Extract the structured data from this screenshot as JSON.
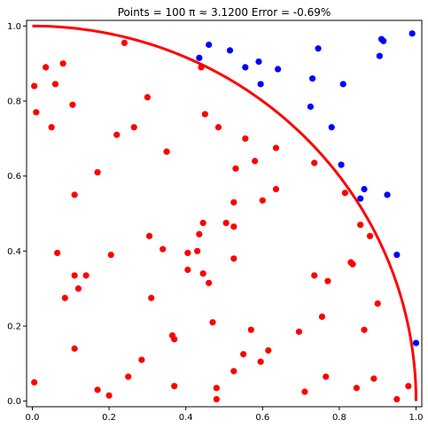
{
  "chart_data": {
    "type": "scatter",
    "title": "Points = 100   π ≈  3.1200   Error = -0.69%",
    "xlabel": "",
    "ylabel": "",
    "xlim": [
      -0.015,
      1.015
    ],
    "ylim": [
      -0.015,
      1.015
    ],
    "grid": false,
    "x_ticks": [
      "0.0",
      "0.2",
      "0.4",
      "0.6",
      "0.8",
      "1.0"
    ],
    "y_ticks": [
      "0.0",
      "0.2",
      "0.4",
      "0.6",
      "0.8",
      "1.0"
    ],
    "colors": {
      "inside": "#ff0000",
      "outside": "#0000ff",
      "arc": "#ff0000"
    },
    "arc": {
      "type": "quarter-circle",
      "radius": 1.0
    },
    "series": [
      {
        "group": "inside",
        "points": [
          [
            0.005,
            0.84
          ],
          [
            0.01,
            0.77
          ],
          [
            0.035,
            0.89
          ],
          [
            0.05,
            0.73
          ],
          [
            0.06,
            0.845
          ],
          [
            0.08,
            0.9
          ],
          [
            0.105,
            0.79
          ],
          [
            0.24,
            0.955
          ],
          [
            0.44,
            0.89
          ],
          [
            0.3,
            0.81
          ],
          [
            0.45,
            0.765
          ],
          [
            0.485,
            0.73
          ],
          [
            0.265,
            0.73
          ],
          [
            0.22,
            0.71
          ],
          [
            0.35,
            0.665
          ],
          [
            0.555,
            0.7
          ],
          [
            0.58,
            0.64
          ],
          [
            0.53,
            0.62
          ],
          [
            0.635,
            0.675
          ],
          [
            0.735,
            0.635
          ],
          [
            0.635,
            0.565
          ],
          [
            0.815,
            0.555
          ],
          [
            0.6,
            0.535
          ],
          [
            0.525,
            0.53
          ],
          [
            0.17,
            0.61
          ],
          [
            0.11,
            0.55
          ],
          [
            0.445,
            0.475
          ],
          [
            0.505,
            0.475
          ],
          [
            0.525,
            0.465
          ],
          [
            0.435,
            0.445
          ],
          [
            0.305,
            0.44
          ],
          [
            0.065,
            0.395
          ],
          [
            0.205,
            0.39
          ],
          [
            0.34,
            0.405
          ],
          [
            0.405,
            0.395
          ],
          [
            0.43,
            0.4
          ],
          [
            0.525,
            0.38
          ],
          [
            0.405,
            0.35
          ],
          [
            0.445,
            0.34
          ],
          [
            0.46,
            0.315
          ],
          [
            0.11,
            0.335
          ],
          [
            0.14,
            0.335
          ],
          [
            0.12,
            0.3
          ],
          [
            0.085,
            0.275
          ],
          [
            0.31,
            0.275
          ],
          [
            0.735,
            0.335
          ],
          [
            0.77,
            0.32
          ],
          [
            0.83,
            0.37
          ],
          [
            0.835,
            0.365
          ],
          [
            0.855,
            0.47
          ],
          [
            0.88,
            0.44
          ],
          [
            0.9,
            0.26
          ],
          [
            0.755,
            0.225
          ],
          [
            0.47,
            0.21
          ],
          [
            0.865,
            0.19
          ],
          [
            0.57,
            0.19
          ],
          [
            0.695,
            0.185
          ],
          [
            0.365,
            0.175
          ],
          [
            0.37,
            0.165
          ],
          [
            0.11,
            0.14
          ],
          [
            0.285,
            0.11
          ],
          [
            0.55,
            0.125
          ],
          [
            0.595,
            0.105
          ],
          [
            0.615,
            0.135
          ],
          [
            0.525,
            0.08
          ],
          [
            0.25,
            0.065
          ],
          [
            0.765,
            0.065
          ],
          [
            0.89,
            0.06
          ],
          [
            0.005,
            0.05
          ],
          [
            0.17,
            0.03
          ],
          [
            0.2,
            0.015
          ],
          [
            0.37,
            0.04
          ],
          [
            0.48,
            0.035
          ],
          [
            0.71,
            0.025
          ],
          [
            0.845,
            0.035
          ],
          [
            0.48,
            0.005
          ],
          [
            0.95,
            0.005
          ],
          [
            0.98,
            0.04
          ]
        ]
      },
      {
        "group": "outside",
        "points": [
          [
            0.46,
            0.95
          ],
          [
            0.515,
            0.935
          ],
          [
            0.435,
            0.915
          ],
          [
            0.555,
            0.89
          ],
          [
            0.59,
            0.905
          ],
          [
            0.64,
            0.885
          ],
          [
            0.745,
            0.94
          ],
          [
            0.595,
            0.845
          ],
          [
            0.73,
            0.86
          ],
          [
            0.81,
            0.845
          ],
          [
            0.905,
            0.92
          ],
          [
            0.91,
            0.965
          ],
          [
            0.915,
            0.96
          ],
          [
            0.99,
            0.98
          ],
          [
            0.725,
            0.785
          ],
          [
            0.78,
            0.73
          ],
          [
            0.805,
            0.63
          ],
          [
            0.865,
            0.565
          ],
          [
            0.855,
            0.54
          ],
          [
            0.925,
            0.55
          ],
          [
            0.95,
            0.39
          ],
          [
            1.0,
            0.155
          ]
        ]
      }
    ]
  }
}
